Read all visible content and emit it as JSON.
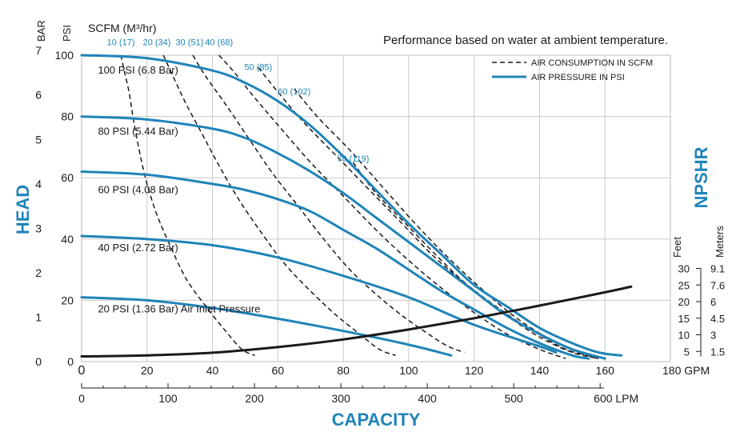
{
  "chart_data": {
    "type": "line",
    "note": "Performance based on water at ambient temperature.",
    "xlabel": "CAPACITY",
    "ylabel": "HEAD",
    "right_label": "NPSHR",
    "x_gpm_ticks": [
      "0",
      "20",
      "40",
      "60",
      "80",
      "100",
      "120",
      "140",
      "160",
      "180 GPM"
    ],
    "x_gpm_range": [
      0,
      180
    ],
    "x_lpm_ticks": [
      "0",
      "100",
      "200",
      "300",
      "400",
      "500",
      "600 LPM"
    ],
    "y_psi_header": "PSI",
    "y_psi_ticks": [
      "0",
      "20",
      "40",
      "60",
      "80",
      "100"
    ],
    "y_psi_range": [
      0,
      100
    ],
    "y_bar_header": "BAR",
    "y_bar_ticks": [
      "0",
      "1",
      "2",
      "3",
      "4",
      "5",
      "6",
      "7"
    ],
    "npshr_feet_header": "Feet",
    "npshr_meters_header": "Meters",
    "npshr_feet_ticks": [
      "5",
      "10",
      "15",
      "20",
      "25",
      "30"
    ],
    "npshr_meters_ticks": [
      "1.5",
      "3",
      "4.5",
      "6",
      "7.6",
      "9.1"
    ],
    "scfm_header": "SCFM (M³/hr)",
    "legend": {
      "position": "top-right",
      "air_consumption": "AIR CONSUMPTION IN SCFM",
      "air_pressure": "AIR PRESSURE IN PSI"
    },
    "colors": {
      "pressure": "#1f84b8",
      "consumption": "#1a1a1a",
      "npshr": "#1a1a1a",
      "grid": "#c8c8c8"
    },
    "series_pressure": [
      {
        "name": "100 PSI (6.8 Bar)",
        "x": [
          0,
          20,
          40,
          50,
          60,
          70,
          80,
          90,
          100,
          110,
          120,
          130,
          140,
          150,
          158,
          165
        ],
        "y": [
          100,
          99,
          95,
          91,
          85,
          77,
          67,
          56,
          45,
          35,
          25,
          18,
          11,
          6,
          3,
          2
        ]
      },
      {
        "name": "80 PSI (5.44 Bar)",
        "x": [
          0,
          20,
          40,
          50,
          60,
          70,
          80,
          90,
          100,
          110,
          120,
          130,
          140,
          150,
          160
        ],
        "y": [
          80,
          79,
          76,
          73,
          68,
          62,
          55,
          47,
          39,
          31,
          23,
          15,
          9,
          4,
          1
        ]
      },
      {
        "name": "60 PSI (4.08 Bar)",
        "x": [
          0,
          20,
          40,
          50,
          60,
          70,
          80,
          90,
          100,
          110,
          120,
          130,
          140,
          150,
          155
        ],
        "y": [
          62,
          61,
          58,
          56,
          53,
          49,
          43,
          37,
          30,
          23,
          17,
          11,
          6,
          2,
          1
        ]
      },
      {
        "name": "40 PSI (2.72 Bar)",
        "x": [
          0,
          20,
          40,
          60,
          80,
          100,
          120,
          140,
          145
        ],
        "y": [
          41,
          40,
          38,
          34,
          28,
          21,
          12,
          5,
          3
        ]
      },
      {
        "name": "20 PSI (1.36 Bar) Air Inlet Pressure",
        "x": [
          0,
          20,
          40,
          60,
          80,
          100,
          113
        ],
        "y": [
          21,
          20,
          17.5,
          14,
          10,
          5.5,
          2
        ]
      }
    ],
    "series_consumption": [
      {
        "name": "10 (17)",
        "x": [
          12,
          13,
          14.5,
          16,
          18,
          20,
          23,
          27,
          32,
          38,
          44,
          49,
          53
        ],
        "y": [
          100,
          95,
          88,
          78,
          67,
          58,
          48,
          38,
          27,
          18,
          10,
          4,
          2
        ]
      },
      {
        "name": "20 (34)",
        "x": [
          25,
          28,
          32,
          37,
          42,
          48,
          55,
          62,
          70,
          78,
          85,
          91,
          96
        ],
        "y": [
          100,
          93,
          84,
          74,
          64,
          53,
          42,
          32,
          23,
          15,
          9,
          4,
          2
        ]
      },
      {
        "name": "30 (51)",
        "x": [
          34,
          38,
          44,
          51,
          58,
          66,
          74,
          82,
          90,
          98,
          106,
          112,
          117
        ],
        "y": [
          100,
          93,
          84,
          73,
          62,
          51,
          40,
          30,
          22,
          15,
          9,
          5,
          3
        ]
      },
      {
        "name": "40 (68)",
        "x": [
          42,
          47,
          53,
          61,
          70,
          80,
          90,
          100,
          110,
          120,
          130,
          140,
          148
        ],
        "y": [
          100,
          94,
          86,
          76,
          65,
          54,
          43,
          33,
          24,
          16,
          9,
          4,
          1
        ]
      },
      {
        "name": "50 (85)",
        "x": [
          54,
          60,
          68,
          78,
          88,
          98,
          108,
          118,
          128,
          138,
          148,
          155
        ],
        "y": [
          96,
          88,
          78,
          67,
          56,
          45,
          34,
          25,
          17,
          10,
          4,
          2
        ]
      },
      {
        "name": "60 (102)",
        "x": [
          65,
          72,
          82,
          92,
          102,
          112,
          122,
          132,
          142,
          152,
          158
        ],
        "y": [
          89,
          80,
          69,
          57,
          45,
          34,
          24,
          15,
          8,
          3,
          1
        ]
      },
      {
        "name": "70 (119)",
        "x": [
          83,
          90,
          100,
          110,
          120,
          130,
          140,
          150,
          158
        ],
        "y": [
          65,
          55,
          44,
          33,
          23,
          15,
          8,
          3,
          1
        ]
      }
    ],
    "npshr_curve": {
      "x": [
        0,
        20,
        40,
        60,
        80,
        100,
        120,
        140,
        160,
        168
      ],
      "y_feet": [
        3.5,
        3.8,
        4.6,
        6.3,
        8.6,
        11.6,
        15,
        18.8,
        22.8,
        24.5
      ]
    },
    "annotations": {
      "consumption_labels": [
        "10 (17)",
        "20 (34)",
        "30 (51)",
        "40 (68)",
        "50 (85)",
        "60 (102)",
        "70 (119)"
      ],
      "pressure_labels": [
        "100 PSI (6.8 Bar)",
        "80 PSI (5.44 Bar)",
        "60 PSI (4.08 Bar)",
        "40 PSI (2.72 Bar)",
        "20 PSI (1.36 Bar) Air Inlet Pressure"
      ]
    }
  }
}
